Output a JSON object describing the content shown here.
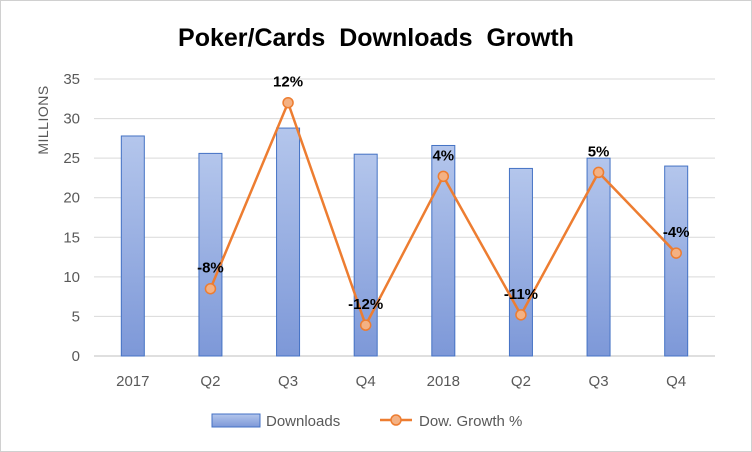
{
  "chart_data": {
    "type": "bar",
    "title": "Poker/Cards  Downloads  Growth",
    "ylabel": "MILLIONS",
    "ylim": [
      0,
      35
    ],
    "yticks": [
      0,
      5,
      10,
      15,
      20,
      25,
      30,
      35
    ],
    "categories": [
      "2017",
      "Q2",
      "Q3",
      "Q4",
      "2018",
      "Q2",
      "Q3",
      "Q4"
    ],
    "series": [
      {
        "name": "Downloads",
        "type": "bar",
        "color": "#8EA9E0",
        "values": [
          27.8,
          25.6,
          28.8,
          25.5,
          26.6,
          23.7,
          25.0,
          24.0
        ]
      },
      {
        "name": "Dow. Growth %",
        "type": "line",
        "color": "#ED7D31",
        "plot_values": [
          null,
          8.5,
          32.0,
          3.9,
          22.7,
          5.2,
          23.2,
          13.0
        ],
        "labels": [
          null,
          "-8%",
          "12%",
          "-12%",
          "4%",
          "-11%",
          "5%",
          "-4%"
        ]
      }
    ],
    "legend_position": "bottom",
    "grid": true
  }
}
